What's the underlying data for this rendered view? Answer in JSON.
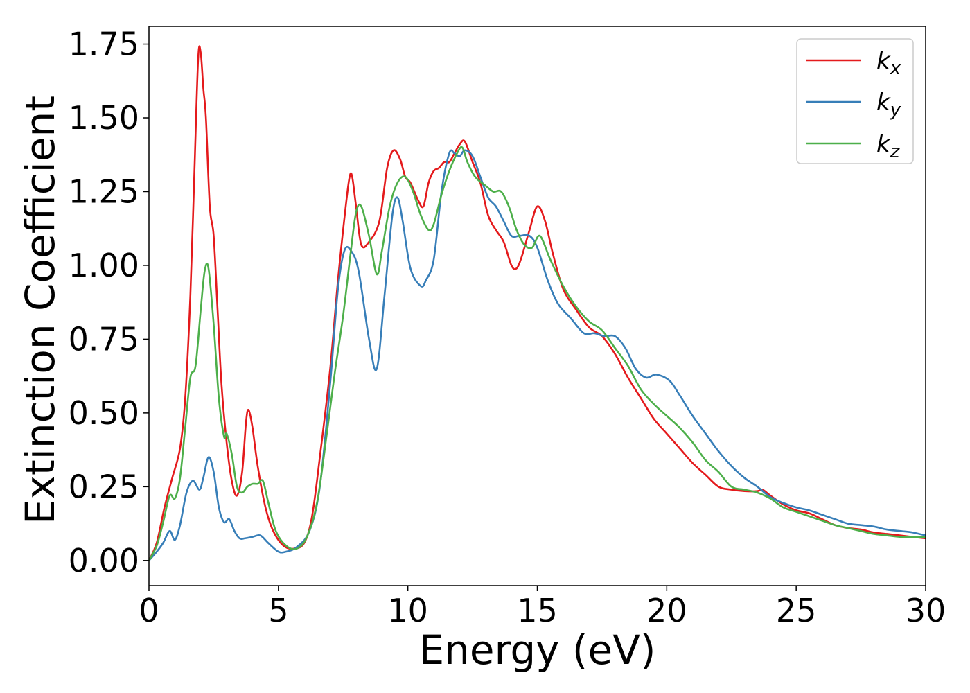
{
  "chart_data": {
    "type": "line",
    "xlabel": "Energy (eV)",
    "ylabel": "Extinction Coefficient",
    "xlim": [
      0,
      30
    ],
    "ylim": [
      -0.085,
      1.81
    ],
    "xticks": [
      0,
      5,
      10,
      15,
      20,
      25,
      30
    ],
    "yticks": [
      0.0,
      0.25,
      0.5,
      0.75,
      1.0,
      1.25,
      1.5,
      1.75
    ],
    "xtick_labels": [
      "0",
      "5",
      "10",
      "15",
      "20",
      "25",
      "30"
    ],
    "ytick_labels": [
      "0.00",
      "0.25",
      "0.50",
      "0.75",
      "1.00",
      "1.25",
      "1.50",
      "1.75"
    ],
    "grid": false,
    "legend_position": "top-right",
    "series": [
      {
        "name": "k",
        "subscript": "x",
        "color": "#e41a1c",
        "x": [
          0,
          0.3,
          0.6,
          0.9,
          1.2,
          1.4,
          1.6,
          1.75,
          1.9,
          2.0,
          2.1,
          2.2,
          2.35,
          2.5,
          2.65,
          2.8,
          3.0,
          3.2,
          3.4,
          3.6,
          3.75,
          3.85,
          4.0,
          4.2,
          4.5,
          4.8,
          5.2,
          5.6,
          6.0,
          6.3,
          6.6,
          7.0,
          7.3,
          7.6,
          7.75,
          7.85,
          8.0,
          8.2,
          8.5,
          8.9,
          9.2,
          9.45,
          9.7,
          9.9,
          10.1,
          10.4,
          10.6,
          10.8,
          11.0,
          11.2,
          11.4,
          11.6,
          11.8,
          12.0,
          12.2,
          12.5,
          12.8,
          13.1,
          13.4,
          13.7,
          14.0,
          14.2,
          14.4,
          14.7,
          15.0,
          15.3,
          15.6,
          16.0,
          16.5,
          17.0,
          17.5,
          18.0,
          18.5,
          19.0,
          19.5,
          20.0,
          20.5,
          21.0,
          21.5,
          22.0,
          22.5,
          23.0,
          23.5,
          23.7,
          24.0,
          24.5,
          25.0,
          25.5,
          26.0,
          26.5,
          27.0,
          27.5,
          28.0,
          28.5,
          29.0,
          29.5,
          30.0
        ],
        "values": [
          0,
          0.06,
          0.18,
          0.28,
          0.38,
          0.55,
          0.9,
          1.3,
          1.7,
          1.72,
          1.6,
          1.5,
          1.2,
          1.1,
          0.85,
          0.6,
          0.4,
          0.27,
          0.22,
          0.3,
          0.47,
          0.51,
          0.45,
          0.32,
          0.18,
          0.1,
          0.05,
          0.04,
          0.06,
          0.15,
          0.35,
          0.65,
          0.95,
          1.2,
          1.3,
          1.3,
          1.2,
          1.07,
          1.08,
          1.15,
          1.33,
          1.39,
          1.36,
          1.3,
          1.28,
          1.22,
          1.2,
          1.28,
          1.32,
          1.33,
          1.35,
          1.35,
          1.38,
          1.41,
          1.42,
          1.35,
          1.28,
          1.17,
          1.12,
          1.08,
          1.0,
          0.99,
          1.03,
          1.12,
          1.2,
          1.15,
          1.04,
          0.92,
          0.85,
          0.79,
          0.76,
          0.7,
          0.62,
          0.55,
          0.48,
          0.43,
          0.38,
          0.33,
          0.29,
          0.25,
          0.24,
          0.235,
          0.235,
          0.24,
          0.22,
          0.19,
          0.17,
          0.16,
          0.14,
          0.12,
          0.11,
          0.105,
          0.095,
          0.09,
          0.085,
          0.08,
          0.075
        ]
      },
      {
        "name": "k",
        "subscript": "y",
        "color": "#377eb8",
        "x": [
          0,
          0.3,
          0.55,
          0.8,
          1.0,
          1.2,
          1.45,
          1.7,
          1.95,
          2.1,
          2.3,
          2.5,
          2.7,
          2.9,
          3.1,
          3.3,
          3.5,
          3.7,
          4.0,
          4.3,
          4.6,
          5.0,
          5.3,
          5.7,
          6.2,
          6.6,
          7.0,
          7.3,
          7.55,
          7.8,
          8.1,
          8.5,
          8.8,
          9.1,
          9.4,
          9.6,
          9.8,
          10.1,
          10.5,
          10.7,
          11.0,
          11.3,
          11.6,
          11.8,
          12.0,
          12.2,
          12.5,
          12.8,
          13.1,
          13.4,
          13.7,
          14.0,
          14.3,
          14.7,
          15.0,
          15.4,
          15.8,
          16.3,
          16.8,
          17.2,
          17.6,
          18.0,
          18.4,
          18.8,
          19.2,
          19.6,
          20.1,
          20.5,
          21.0,
          21.5,
          22.0,
          22.5,
          23.0,
          23.5,
          24.0,
          24.5,
          25.0,
          25.5,
          26.0,
          26.5,
          27.0,
          27.5,
          28.0,
          28.5,
          29.0,
          29.5,
          30.0
        ],
        "values": [
          0,
          0.03,
          0.06,
          0.1,
          0.07,
          0.12,
          0.23,
          0.27,
          0.24,
          0.28,
          0.35,
          0.3,
          0.18,
          0.13,
          0.14,
          0.1,
          0.075,
          0.075,
          0.08,
          0.085,
          0.06,
          0.03,
          0.03,
          0.045,
          0.1,
          0.25,
          0.6,
          0.92,
          1.05,
          1.05,
          0.98,
          0.75,
          0.65,
          0.9,
          1.17,
          1.23,
          1.15,
          0.99,
          0.93,
          0.95,
          1.02,
          1.25,
          1.38,
          1.38,
          1.37,
          1.39,
          1.37,
          1.3,
          1.23,
          1.2,
          1.15,
          1.1,
          1.1,
          1.1,
          1.06,
          0.95,
          0.87,
          0.82,
          0.77,
          0.77,
          0.76,
          0.76,
          0.72,
          0.65,
          0.62,
          0.63,
          0.61,
          0.56,
          0.49,
          0.43,
          0.37,
          0.32,
          0.28,
          0.25,
          0.215,
          0.195,
          0.18,
          0.17,
          0.155,
          0.14,
          0.125,
          0.12,
          0.115,
          0.105,
          0.1,
          0.095,
          0.085
        ]
      },
      {
        "name": "k",
        "subscript": "z",
        "color": "#4daf4a",
        "x": [
          0,
          0.3,
          0.55,
          0.8,
          1.0,
          1.2,
          1.4,
          1.6,
          1.8,
          2.0,
          2.15,
          2.3,
          2.5,
          2.7,
          2.9,
          3.0,
          3.2,
          3.4,
          3.6,
          3.8,
          4.0,
          4.2,
          4.4,
          4.6,
          4.9,
          5.3,
          5.7,
          6.1,
          6.5,
          6.9,
          7.2,
          7.5,
          7.8,
          8.0,
          8.2,
          8.5,
          8.8,
          9.0,
          9.3,
          9.6,
          9.9,
          10.2,
          10.5,
          10.8,
          11.0,
          11.3,
          11.6,
          11.9,
          12.1,
          12.3,
          12.6,
          13.0,
          13.3,
          13.6,
          13.9,
          14.2,
          14.5,
          14.8,
          15.1,
          15.5,
          16.0,
          16.5,
          17.0,
          17.5,
          18.0,
          18.5,
          19.0,
          19.5,
          20.0,
          20.5,
          21.0,
          21.5,
          22.0,
          22.5,
          23.0,
          23.5,
          24.0,
          24.5,
          25.0,
          25.5,
          26.0,
          26.5,
          27.0,
          27.5,
          28.0,
          28.5,
          29.0,
          29.5,
          30.0
        ],
        "values": [
          0,
          0.05,
          0.13,
          0.22,
          0.21,
          0.28,
          0.45,
          0.62,
          0.66,
          0.85,
          0.98,
          0.99,
          0.8,
          0.55,
          0.42,
          0.43,
          0.36,
          0.25,
          0.23,
          0.25,
          0.26,
          0.26,
          0.27,
          0.2,
          0.1,
          0.05,
          0.04,
          0.08,
          0.2,
          0.45,
          0.65,
          0.83,
          1.05,
          1.18,
          1.2,
          1.1,
          0.97,
          1.05,
          1.2,
          1.28,
          1.3,
          1.25,
          1.17,
          1.12,
          1.14,
          1.24,
          1.32,
          1.38,
          1.4,
          1.35,
          1.3,
          1.27,
          1.25,
          1.25,
          1.2,
          1.12,
          1.07,
          1.06,
          1.1,
          1.02,
          0.93,
          0.86,
          0.81,
          0.78,
          0.72,
          0.66,
          0.58,
          0.53,
          0.49,
          0.45,
          0.4,
          0.34,
          0.3,
          0.25,
          0.24,
          0.23,
          0.21,
          0.18,
          0.165,
          0.15,
          0.135,
          0.12,
          0.11,
          0.1,
          0.09,
          0.085,
          0.08,
          0.08,
          0.08
        ]
      }
    ]
  }
}
